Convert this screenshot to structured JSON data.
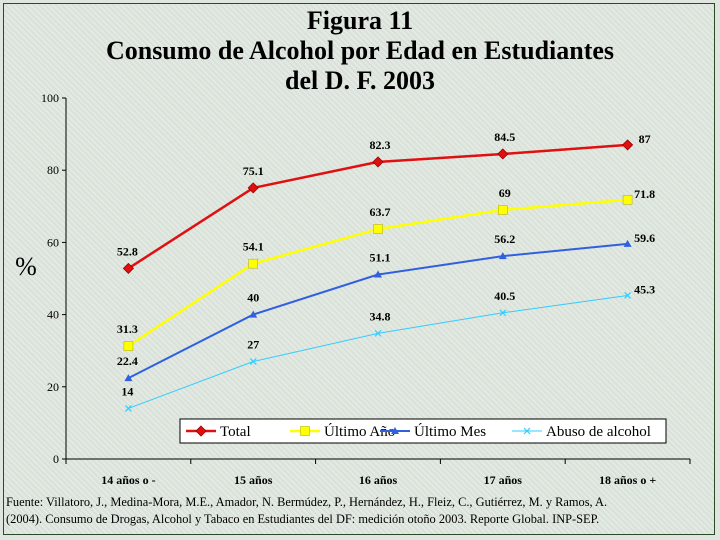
{
  "figure": {
    "title_lines": [
      "Figura 11",
      "Consumo de Alcohol  por Edad en Estudiantes",
      "del D. F. 2003"
    ],
    "source_lines": [
      "Fuente: Villatoro, J., Medina-Mora, M.E., Amador, N. Bermúdez, P., Hernández, H., Fleiz, C., Gutiérrez, M. y Ramos, A.",
      "(2004). Consumo de Drogas, Alcohol y Tabaco en Estudiantes del DF: medición otoño 2003. Reporte Global. INP-SEP."
    ]
  },
  "chart_data": {
    "type": "line",
    "title": "Figura 11 Consumo de Alcohol  por Edad en Estudiantes del D. F. 2003",
    "xlabel": "",
    "ylabel": "%",
    "ylim": [
      0,
      100
    ],
    "yticks": [
      0,
      20,
      40,
      60,
      80,
      100
    ],
    "categories": [
      "14 años o -",
      "15 años",
      "16 años",
      "17 años",
      "18 años o +"
    ],
    "grid": false,
    "legend_position": "bottom-inside",
    "series": [
      {
        "name": "Total",
        "values": [
          52.8,
          75.1,
          82.3,
          84.5,
          87
        ],
        "labels": [
          "52.8",
          "75.1",
          "82.3",
          "84.5",
          "87"
        ],
        "color": "#e01010",
        "marker": "diamond"
      },
      {
        "name": "Último Año",
        "values": [
          31.3,
          54.1,
          63.7,
          69,
          71.8
        ],
        "labels": [
          "31.3",
          "54.1",
          "63.7",
          "69",
          "71.8"
        ],
        "color": "#ffff00",
        "marker": "square"
      },
      {
        "name": "Último Mes",
        "values": [
          22.4,
          40,
          51.1,
          56.2,
          59.6
        ],
        "labels": [
          "22.4",
          "40",
          "51.1",
          "56.2",
          "59.6"
        ],
        "color": "#3060e0",
        "marker": "triangle"
      },
      {
        "name": "Abuso de alcohol",
        "values": [
          14,
          27,
          34.8,
          40.5,
          45.3
        ],
        "labels": [
          "14",
          "27",
          "34.8",
          "40.5",
          "45.3"
        ],
        "color": "#33ccff",
        "marker": "x"
      }
    ]
  }
}
